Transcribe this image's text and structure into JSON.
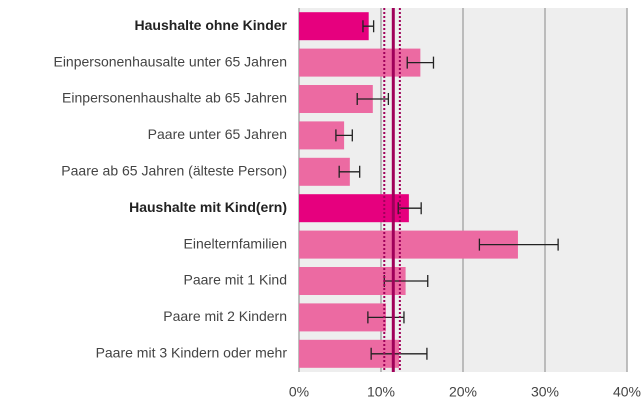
{
  "chart_data": {
    "type": "barh",
    "categories": [
      "Haushalte ohne Kinder",
      "Einpersonenhausalte unter 65 Jahren",
      "Einpersonenhaushalte ab 65 Jahren",
      "Paare unter 65 Jahren",
      "Paare ab 65 Jahren (älteste Person)",
      "Haushalte mit Kind(ern)",
      "Eineltern­familien",
      "Paare mit 1 Kind",
      "Paare mit 2 Kindern",
      "Paare mit 3 Kindern oder mehr"
    ],
    "bold": [
      true,
      false,
      false,
      false,
      false,
      true,
      false,
      false,
      false,
      false
    ],
    "values": [
      8.5,
      14.8,
      9.0,
      5.5,
      6.2,
      13.4,
      26.7,
      13.0,
      10.6,
      12.2
    ],
    "ci_low": [
      7.8,
      13.2,
      7.1,
      4.5,
      4.9,
      12.1,
      22.0,
      10.4,
      8.4,
      8.8
    ],
    "ci_high": [
      9.1,
      16.4,
      10.9,
      6.5,
      7.4,
      14.9,
      31.6,
      15.7,
      12.8,
      15.6
    ],
    "colors": [
      "#e6007e",
      "#ec6aa2",
      "#ec6aa2",
      "#ec6aa2",
      "#ec6aa2",
      "#e6007e",
      "#ec6aa2",
      "#ec6aa2",
      "#ec6aa2",
      "#ec6aa2"
    ],
    "reference": {
      "value": 11.5,
      "ci": [
        10.4,
        12.3
      ],
      "color": "#a0005a"
    },
    "xlim": [
      0,
      40
    ],
    "xticks": [
      {
        "value": 0,
        "label": "0%"
      },
      {
        "value": 10,
        "label": "10%"
      },
      {
        "value": 20,
        "label": "20%"
      },
      {
        "value": 30,
        "label": "30%"
      },
      {
        "value": 40,
        "label": "40%"
      }
    ],
    "grid": true
  }
}
